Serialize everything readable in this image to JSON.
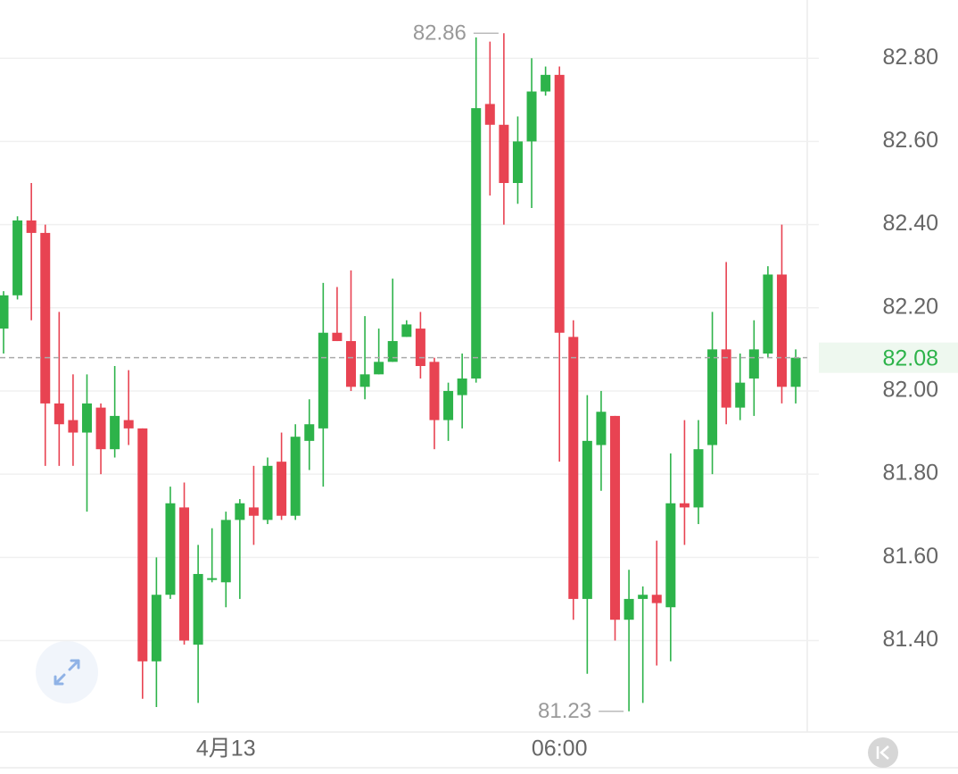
{
  "chart_data": {
    "type": "candlestick",
    "categories": [
      null,
      null,
      null,
      null,
      null,
      null,
      null,
      null,
      null,
      null,
      null,
      null,
      null,
      null,
      null,
      null,
      "4月13",
      null,
      null,
      null,
      null,
      null,
      null,
      null,
      null,
      null,
      null,
      null,
      null,
      null,
      null,
      null,
      null,
      null,
      null,
      null,
      null,
      null,
      null,
      null,
      "06:00",
      null,
      null,
      null,
      null,
      null,
      null,
      null,
      null,
      null,
      null,
      null,
      null,
      null,
      null,
      null,
      null,
      null
    ],
    "open": [
      82.15,
      82.23,
      82.41,
      82.38,
      81.97,
      81.93,
      81.9,
      81.96,
      81.86,
      81.93,
      81.91,
      81.35,
      81.51,
      81.72,
      81.39,
      81.55,
      81.54,
      81.69,
      81.72,
      81.69,
      81.83,
      81.7,
      81.88,
      81.91,
      82.14,
      82.12,
      82.01,
      82.04,
      82.07,
      82.13,
      82.15,
      82.07,
      81.93,
      81.99,
      82.03,
      82.69,
      82.64,
      82.5,
      82.6,
      82.72,
      82.76,
      82.13,
      81.5,
      81.87,
      81.94,
      81.45,
      81.5,
      81.51,
      81.48,
      81.73,
      81.72,
      81.87,
      82.1,
      81.96,
      82.03,
      82.09,
      82.28,
      82.01
    ],
    "close": [
      82.23,
      82.41,
      82.38,
      81.97,
      81.92,
      81.9,
      81.97,
      81.86,
      81.94,
      81.91,
      81.35,
      81.51,
      81.73,
      81.4,
      81.56,
      81.55,
      81.69,
      81.73,
      81.7,
      81.82,
      81.7,
      81.89,
      81.92,
      82.14,
      82.12,
      82.01,
      82.04,
      82.07,
      82.12,
      82.16,
      82.06,
      81.93,
      82.0,
      82.03,
      82.68,
      82.64,
      82.5,
      82.6,
      82.72,
      82.76,
      82.14,
      81.5,
      81.88,
      81.95,
      81.45,
      81.5,
      81.51,
      81.49,
      81.73,
      81.72,
      81.86,
      82.1,
      81.96,
      82.02,
      82.1,
      82.28,
      82.01,
      82.08
    ],
    "high": [
      82.24,
      82.42,
      82.5,
      82.4,
      82.19,
      82.04,
      82.04,
      81.97,
      82.06,
      82.05,
      81.91,
      81.6,
      81.77,
      81.78,
      81.63,
      81.67,
      81.71,
      81.74,
      81.82,
      81.84,
      81.9,
      81.92,
      81.98,
      82.26,
      82.25,
      82.29,
      82.18,
      82.15,
      82.27,
      82.17,
      82.19,
      82.08,
      82.02,
      82.09,
      82.85,
      82.84,
      82.86,
      82.66,
      82.8,
      82.78,
      82.78,
      82.17,
      81.99,
      82.0,
      81.94,
      81.57,
      81.53,
      81.64,
      81.85,
      81.93,
      81.93,
      82.19,
      82.31,
      82.09,
      82.17,
      82.3,
      82.4,
      82.1
    ],
    "low": [
      82.09,
      82.22,
      82.17,
      81.82,
      81.82,
      81.82,
      81.71,
      81.8,
      81.84,
      81.87,
      81.26,
      81.24,
      81.5,
      81.39,
      81.25,
      81.54,
      81.48,
      81.5,
      81.63,
      81.68,
      81.69,
      81.69,
      81.81,
      81.77,
      82.12,
      82.0,
      81.98,
      82.04,
      82.07,
      82.13,
      82.03,
      81.86,
      81.88,
      81.91,
      82.02,
      82.47,
      82.4,
      82.45,
      82.44,
      82.71,
      81.83,
      81.45,
      81.32,
      81.76,
      81.4,
      81.23,
      81.25,
      81.34,
      81.35,
      81.63,
      81.68,
      81.8,
      81.92,
      81.93,
      81.94,
      82.08,
      81.97,
      81.97
    ],
    "up_color": "#2db34a",
    "down_color": "#e84352",
    "ylim": [
      81.18,
      82.94
    ],
    "yticks": [
      {
        "value": 81.4,
        "label": "81.40"
      },
      {
        "value": 81.6,
        "label": "81.60"
      },
      {
        "value": 81.8,
        "label": "81.80"
      },
      {
        "value": 82.0,
        "label": "82.00"
      },
      {
        "value": 82.2,
        "label": "82.20"
      },
      {
        "value": 82.4,
        "label": "82.40"
      },
      {
        "value": 82.6,
        "label": "82.60"
      },
      {
        "value": 82.8,
        "label": "82.80"
      }
    ],
    "grid": true,
    "last_price": 82.08,
    "annotations": {
      "high": 82.86,
      "low": 81.23
    }
  }
}
